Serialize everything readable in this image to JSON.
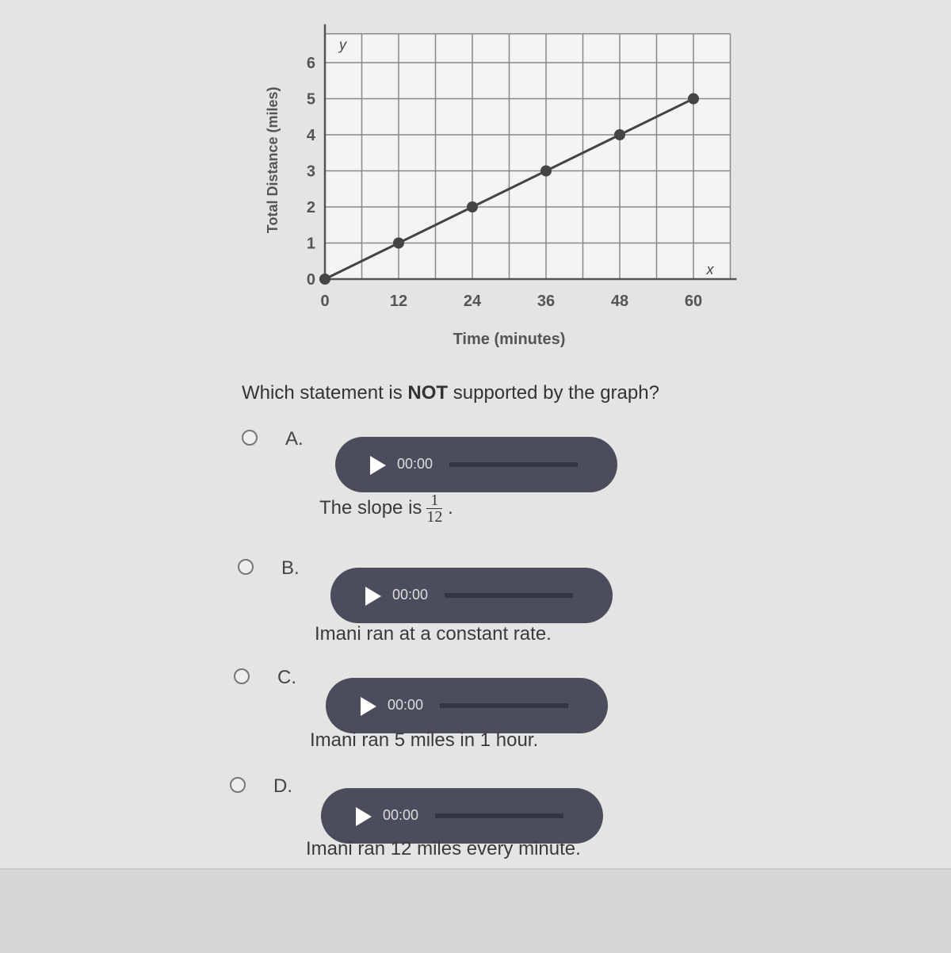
{
  "chart_data": {
    "type": "line",
    "xlabel": "Time (minutes)",
    "ylabel": "Total Distance (miles)",
    "x_axis_letter": "x",
    "y_axis_letter": "y",
    "x_ticks": [
      "0",
      "12",
      "24",
      "36",
      "48",
      "60"
    ],
    "y_ticks": [
      "0",
      "1",
      "2",
      "3",
      "4",
      "5",
      "6"
    ],
    "xlim": [
      0,
      66
    ],
    "ylim": [
      0,
      6.8
    ],
    "grid": true,
    "x": [
      0,
      12,
      24,
      36,
      48,
      60
    ],
    "y": [
      0,
      1,
      2,
      3,
      4,
      5
    ],
    "color": "#444444"
  },
  "question": {
    "prefix": "Which statement is ",
    "emphasis": "NOT",
    "suffix": " supported by the graph?"
  },
  "options": [
    {
      "letter": "A.",
      "time": "00:00",
      "text": "The slope is",
      "frac_num": "1",
      "frac_den": "12",
      "trail": "."
    },
    {
      "letter": "B.",
      "time": "00:00",
      "text": "Imani ran at a constant rate."
    },
    {
      "letter": "C.",
      "time": "00:00",
      "text": "Imani ran 5 miles in 1 hour."
    },
    {
      "letter": "D.",
      "time": "00:00",
      "text": "Imani ran 12 miles every minute."
    }
  ],
  "colors": {
    "player": "#4b4d5c",
    "background": "#e4e4e2"
  }
}
